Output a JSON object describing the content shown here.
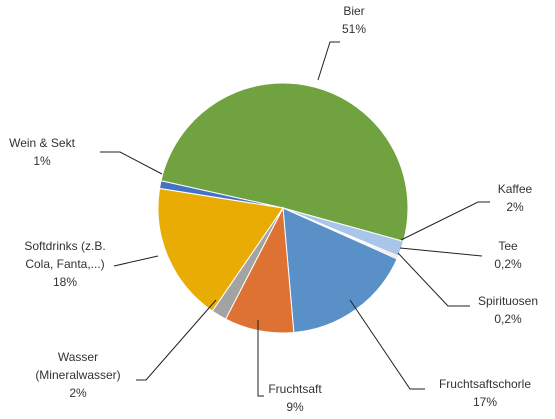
{
  "chart_data": {
    "type": "pie",
    "categories": [
      "Bier",
      "Kaffee",
      "Tee",
      "Spirituosen",
      "Fruchtsaftschorle",
      "Fruchtsaft",
      "Wasser (Mineralwasser)",
      "Softdrinks (z.B. Cola, Fanta,...)",
      "Wein & Sekt"
    ],
    "values": [
      51,
      2,
      0.2,
      0.2,
      17,
      9,
      2,
      18,
      1
    ],
    "value_labels": [
      "51%",
      "2%",
      "0,2%",
      "0,2%",
      "17%",
      "9%",
      "2%",
      "18%",
      "1%"
    ],
    "colors": [
      "#70a23f",
      "#a9c5ea",
      "#f4b183",
      "#c9c9c9",
      "#5a90c8",
      "#dd7232",
      "#a3a3a3",
      "#e8ac05",
      "#4472c4"
    ]
  }
}
